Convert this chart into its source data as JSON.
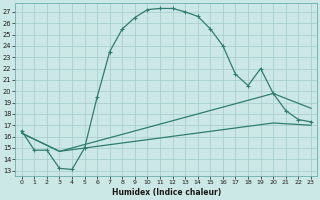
{
  "title": "",
  "xlabel": "Humidex (Indice chaleur)",
  "bg_color": "#cce8e6",
  "grid_color": "#aacfcc",
  "line_color": "#2e7d6e",
  "ylim": [
    12.5,
    27.8
  ],
  "xlim": [
    -0.5,
    23.5
  ],
  "yticks": [
    13,
    14,
    15,
    16,
    17,
    18,
    19,
    20,
    21,
    22,
    23,
    24,
    25,
    26,
    27
  ],
  "xticks": [
    0,
    1,
    2,
    3,
    4,
    5,
    6,
    7,
    8,
    9,
    10,
    11,
    12,
    13,
    14,
    15,
    16,
    17,
    18,
    19,
    20,
    21,
    22,
    23
  ],
  "line1_x": [
    0,
    1,
    2,
    3,
    4,
    5,
    6,
    7,
    8,
    9,
    10,
    11,
    12,
    13,
    14,
    15,
    16,
    17,
    18,
    19,
    20,
    21,
    22,
    23
  ],
  "line1_y": [
    16.5,
    14.8,
    14.8,
    13.2,
    13.1,
    15.0,
    19.5,
    23.5,
    25.5,
    26.5,
    27.2,
    27.3,
    27.3,
    27.0,
    26.6,
    25.5,
    24.0,
    21.5,
    20.5,
    22.0,
    19.8,
    18.3,
    17.5,
    17.3
  ],
  "line2_x": [
    0,
    3,
    20,
    23
  ],
  "line2_y": [
    16.3,
    14.7,
    19.8,
    18.5
  ],
  "line3_x": [
    0,
    3,
    20,
    23
  ],
  "line3_y": [
    16.3,
    14.7,
    17.2,
    17.0
  ]
}
